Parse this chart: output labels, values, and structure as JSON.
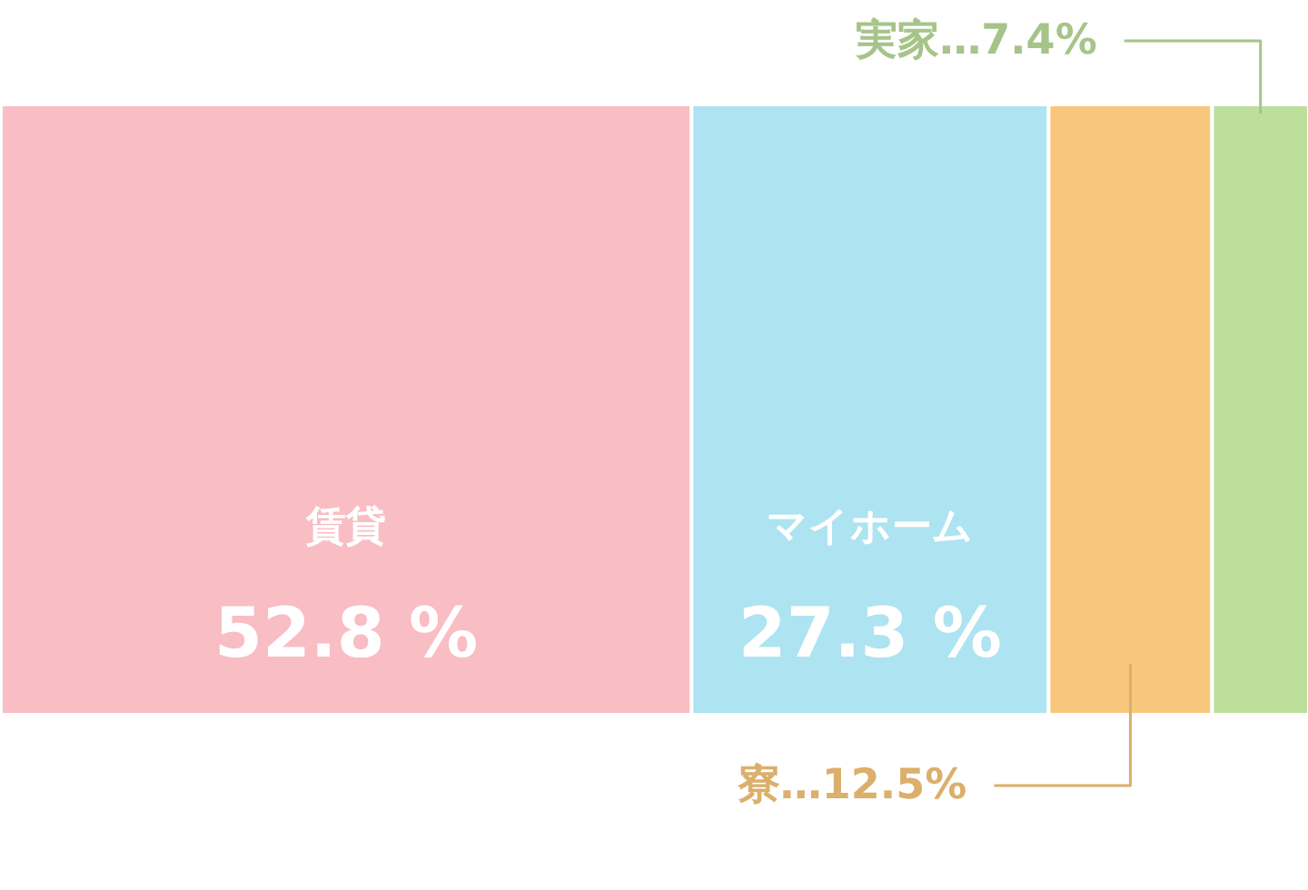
{
  "chart_data": {
    "type": "bar",
    "stacked": true,
    "orientation": "horizontal",
    "categories": [
      null
    ],
    "tick_labels": false,
    "series": [
      {
        "name": "賃貸",
        "color": "#f9bdc4",
        "values": [
          52.8
        ],
        "value_labels": [
          "52.8 %"
        ]
      },
      {
        "name": "マイホーム",
        "color": "#aee3f1",
        "values": [
          27.3
        ],
        "value_labels": [
          "27.3 %"
        ]
      },
      {
        "name": "寮",
        "color": "#f9c77b",
        "values": [
          12.5
        ],
        "value_labels": [
          "…12.5%"
        ]
      },
      {
        "name": "実家",
        "color": "#bddf9c",
        "values": [
          7.4
        ],
        "value_labels": [
          "…7.4%"
        ]
      }
    ]
  }
}
